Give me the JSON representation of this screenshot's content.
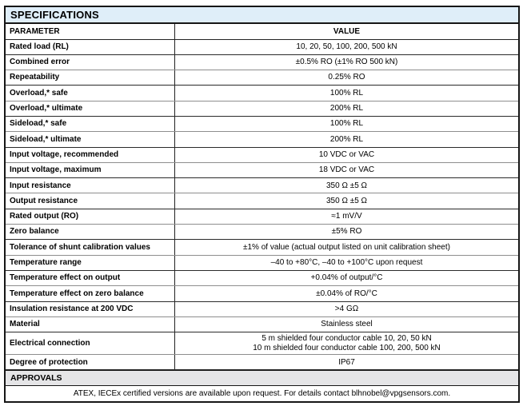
{
  "colors": {
    "title_band_bg": "#dfeef9",
    "approvals_band_bg": "#e5e5e7",
    "border_dark": "#161616",
    "border_gray": "#8e8e8e",
    "text": "#000000"
  },
  "table": {
    "title": "SPECIFICATIONS",
    "columns": [
      "PARAMETER",
      "VALUE"
    ],
    "rows": [
      {
        "param": "Rated load (RL)",
        "value": "10, 20, 50, 100, 200, 500 kN"
      },
      {
        "param": "Combined error",
        "value": "±0.5% RO (±1% RO 500 kN)"
      },
      {
        "param": "Repeatability",
        "value": "0.25% RO"
      },
      {
        "param": "Overload,* safe",
        "value": "100% RL"
      },
      {
        "param": "Overload,* ultimate",
        "value": "200% RL"
      },
      {
        "param": "Sideload,* safe",
        "value": "100% RL"
      },
      {
        "param": "Sideload,* ultimate",
        "value": "200% RL"
      },
      {
        "param": "Input voltage, recommended",
        "value": "10 VDC or VAC"
      },
      {
        "param": "Input voltage, maximum",
        "value": "18 VDC or VAC"
      },
      {
        "param": "Input resistance",
        "value": "350 Ω ±5 Ω"
      },
      {
        "param": "Output resistance",
        "value": "350 Ω ±5 Ω"
      },
      {
        "param": "Rated output (RO)",
        "value": "≈1 mV/V"
      },
      {
        "param": "Zero balance",
        "value": "±5% RO"
      },
      {
        "param": "Tolerance of shunt calibration values",
        "value": "±1% of value (actual output listed on unit calibration sheet)"
      },
      {
        "param": "Temperature range",
        "value": "–40 to +80°C, –40 to +100°C upon request"
      },
      {
        "param": "Temperature effect on output",
        "value": "+0.04% of output/°C"
      },
      {
        "param": "Temperature effect on zero balance",
        "value": "±0.04% of RO/°C"
      },
      {
        "param": "Insulation resistance at 200 VDC",
        "value": ">4 GΩ"
      },
      {
        "param": "Material",
        "value": "Stainless steel"
      },
      {
        "param": "Electrical connection",
        "value": "5 m shielded four conductor cable 10, 20, 50 kN",
        "value2": "10 m shielded four conductor cable 100, 200, 500 kN"
      },
      {
        "param": "Degree of protection",
        "value": "IP67"
      }
    ],
    "approvals": {
      "title": "APPROVALS",
      "note": "ATEX, IECEx certified versions are available upon request. For details contact blhnobel@vpgsensors.com."
    }
  }
}
